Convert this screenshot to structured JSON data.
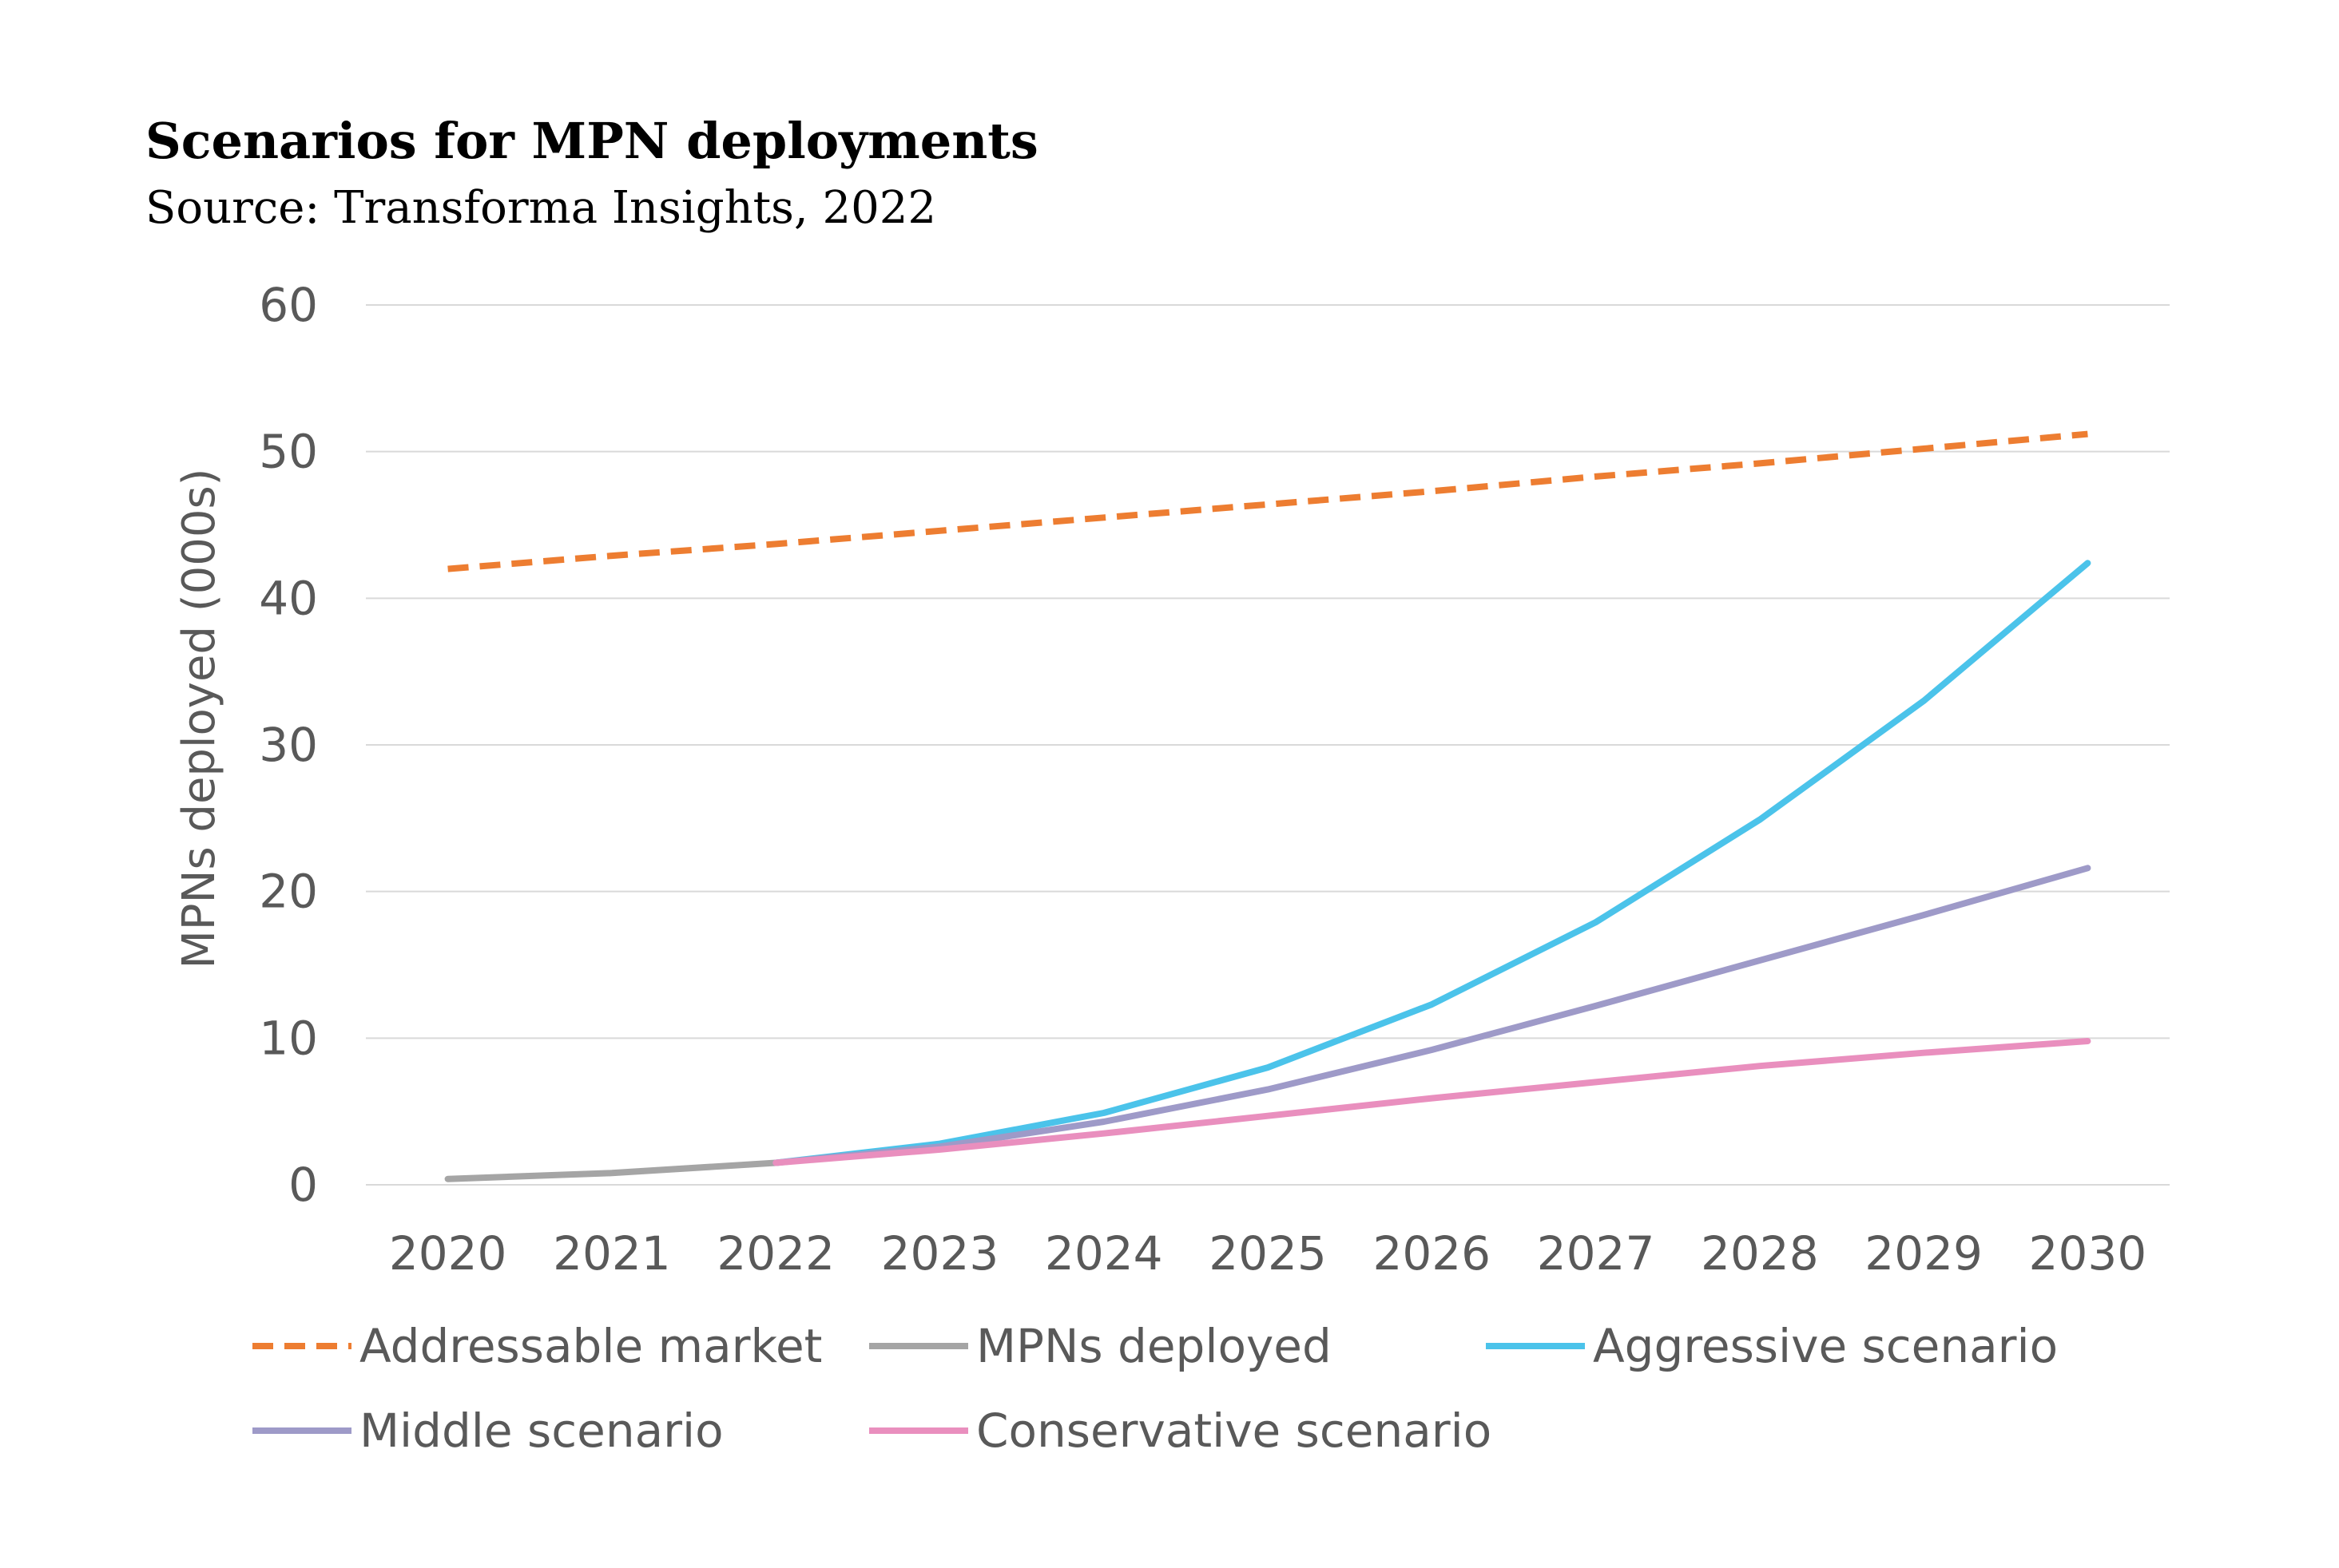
{
  "chart_data": {
    "type": "line",
    "title": "Scenarios for MPN deployments",
    "subtitle": "Source: Transforma Insights, 2022",
    "xlabel": "",
    "ylabel": "MPNs deployed (000s)",
    "ylim": [
      0,
      60
    ],
    "yticks": [
      0,
      10,
      20,
      30,
      40,
      50,
      60
    ],
    "x": [
      "2020",
      "2021",
      "2022",
      "2023",
      "2024",
      "2025",
      "2026",
      "2027",
      "2028",
      "2029",
      "2030"
    ],
    "grid": true,
    "legend_position": "bottom",
    "series": [
      {
        "name": "Addressable market",
        "color": "#ED7D31",
        "dash": true,
        "values": [
          42.0,
          42.9,
          43.7,
          44.6,
          45.5,
          46.4,
          47.3,
          48.3,
          49.2,
          50.2,
          51.2
        ]
      },
      {
        "name": "MPNs deployed",
        "color": "#A5A5A5",
        "dash": false,
        "values": [
          0.4,
          0.8,
          1.5,
          null,
          null,
          null,
          null,
          null,
          null,
          null,
          null
        ]
      },
      {
        "name": "Aggressive scenario",
        "color": "#4BC3EA",
        "dash": false,
        "values": [
          null,
          null,
          1.5,
          2.8,
          4.9,
          8.0,
          12.3,
          17.9,
          24.9,
          33.0,
          42.4
        ]
      },
      {
        "name": "Middle scenario",
        "color": "#9E9AC8",
        "dash": false,
        "values": [
          null,
          null,
          1.5,
          2.6,
          4.3,
          6.5,
          9.2,
          12.2,
          15.3,
          18.4,
          21.6
        ]
      },
      {
        "name": "Conservative scenario",
        "color": "#E98FBE",
        "dash": false,
        "values": [
          null,
          null,
          1.5,
          2.4,
          3.5,
          4.7,
          5.9,
          7.0,
          8.1,
          9.0,
          9.8
        ]
      }
    ]
  }
}
